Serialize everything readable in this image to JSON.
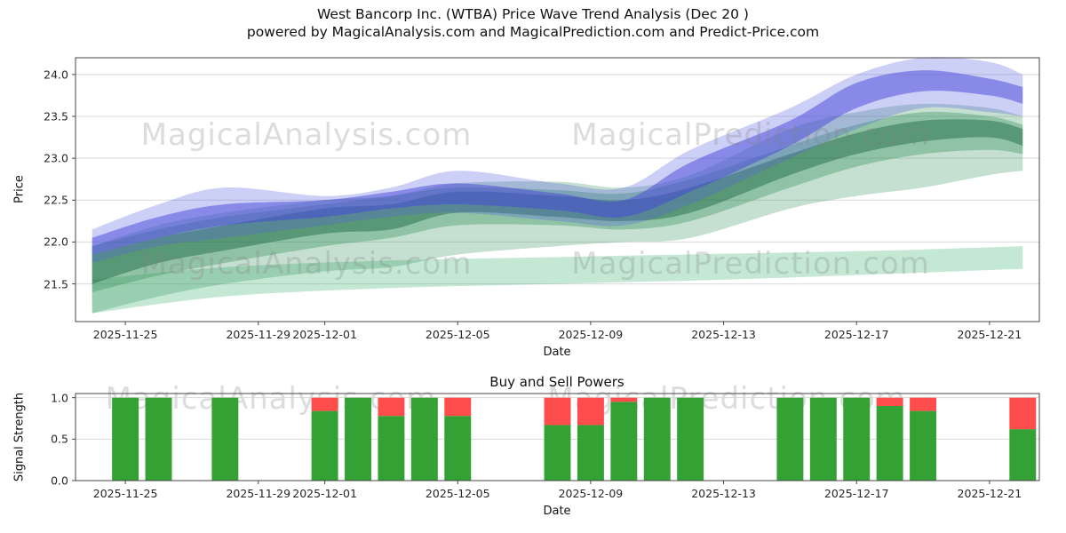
{
  "title": "West Bancorp Inc. (WTBA) Price Wave Trend Analysis (Dec 20 )",
  "subtitle": "powered by MagicalAnalysis.com and MagicalPrediction.com and Predict-Price.com",
  "watermarks": [
    "MagicalAnalysis.com",
    "MagicalPrediction.com"
  ],
  "colors": {
    "text": "#111111",
    "grid": "#d9d9d9",
    "axis": "#444444",
    "watermark": "rgba(128,128,128,0.28)",
    "bar_buy": "#33a133",
    "bar_sell": "#ff4d4d"
  },
  "chart_data": [
    {
      "type": "area",
      "title": "",
      "ylabel": "Price",
      "xlabel": "Date",
      "ylim": [
        21.05,
        24.2
      ],
      "y_ticks": [
        "21.5",
        "22.0",
        "22.5",
        "23.0",
        "23.5",
        "24.0"
      ],
      "day_range": [
        0.5,
        29.5
      ],
      "x_ticks": [
        {
          "day": 2,
          "label": "2025-11-25"
        },
        {
          "day": 6,
          "label": "2025-11-29"
        },
        {
          "day": 8,
          "label": "2025-12-01"
        },
        {
          "day": 12,
          "label": "2025-12-05"
        },
        {
          "day": 16,
          "label": "2025-12-09"
        },
        {
          "day": 20,
          "label": "2025-12-13"
        },
        {
          "day": 24,
          "label": "2025-12-17"
        },
        {
          "day": 28,
          "label": "2025-12-21"
        }
      ],
      "bands": [
        {
          "name": "support-channel-green",
          "color": "#3cb371",
          "opacity": 0.3,
          "days": [
            1,
            5,
            10,
            15,
            20,
            25,
            29
          ],
          "lower": [
            21.15,
            21.35,
            21.45,
            21.5,
            21.55,
            21.62,
            21.68
          ],
          "upper": [
            21.55,
            21.7,
            21.78,
            21.82,
            21.86,
            21.9,
            21.95
          ]
        },
        {
          "name": "outer-green-wave",
          "color": "#2e8b57",
          "opacity": 0.28,
          "days": [
            1,
            3,
            5,
            8,
            10,
            12,
            15,
            17,
            19,
            22,
            24,
            26,
            28,
            29
          ],
          "lower": [
            21.15,
            21.35,
            21.5,
            21.65,
            21.7,
            21.85,
            21.95,
            22.0,
            22.05,
            22.4,
            22.55,
            22.65,
            22.8,
            22.85
          ],
          "upper": [
            21.95,
            22.2,
            22.35,
            22.5,
            22.55,
            22.7,
            22.72,
            22.65,
            22.8,
            23.35,
            23.55,
            23.65,
            23.6,
            23.5
          ]
        },
        {
          "name": "mid-green-wave",
          "color": "#2e8b57",
          "opacity": 0.35,
          "days": [
            1,
            3,
            5,
            8,
            10,
            12,
            15,
            17,
            19,
            22,
            24,
            26,
            28,
            29
          ],
          "lower": [
            21.4,
            21.6,
            21.75,
            21.95,
            22.05,
            22.2,
            22.2,
            22.15,
            22.25,
            22.65,
            22.9,
            23.05,
            23.1,
            23.05
          ],
          "upper": [
            21.95,
            22.15,
            22.3,
            22.45,
            22.55,
            22.65,
            22.62,
            22.58,
            22.75,
            23.15,
            23.4,
            23.55,
            23.5,
            23.4
          ]
        },
        {
          "name": "core-green-wave",
          "color": "#1f6e48",
          "opacity": 0.5,
          "days": [
            1,
            3,
            5,
            8,
            10,
            12,
            15,
            17,
            19,
            22,
            24,
            26,
            28,
            29
          ],
          "lower": [
            21.5,
            21.75,
            21.9,
            22.1,
            22.15,
            22.35,
            22.3,
            22.25,
            22.35,
            22.8,
            23.05,
            23.2,
            23.25,
            23.15
          ],
          "upper": [
            21.85,
            22.05,
            22.2,
            22.4,
            22.45,
            22.6,
            22.55,
            22.5,
            22.65,
            23.05,
            23.3,
            23.45,
            23.45,
            23.35
          ]
        },
        {
          "name": "outer-blue-wave",
          "color": "#5560e0",
          "opacity": 0.3,
          "days": [
            1,
            3,
            5,
            8,
            10,
            12,
            15,
            17,
            19,
            22,
            24,
            26,
            28,
            29
          ],
          "lower": [
            21.75,
            21.95,
            22.05,
            22.2,
            22.3,
            22.35,
            22.25,
            22.2,
            22.45,
            23.0,
            23.35,
            23.6,
            23.55,
            23.5
          ],
          "upper": [
            22.15,
            22.45,
            22.65,
            22.55,
            22.65,
            22.85,
            22.7,
            22.65,
            23.1,
            23.6,
            24.0,
            24.2,
            24.15,
            24.0
          ]
        },
        {
          "name": "core-blue-wave",
          "color": "#4646d8",
          "opacity": 0.5,
          "days": [
            1,
            3,
            5,
            8,
            10,
            12,
            15,
            17,
            19,
            22,
            24,
            26,
            28,
            29
          ],
          "lower": [
            21.85,
            22.05,
            22.2,
            22.3,
            22.4,
            22.45,
            22.38,
            22.3,
            22.6,
            23.15,
            23.6,
            23.8,
            23.75,
            23.65
          ],
          "upper": [
            22.05,
            22.3,
            22.45,
            22.5,
            22.6,
            22.7,
            22.58,
            22.5,
            22.95,
            23.45,
            23.9,
            24.05,
            23.95,
            23.85
          ]
        }
      ]
    },
    {
      "type": "bar",
      "title": "Buy and Sell Powers",
      "ylabel": "Signal Strength",
      "xlabel": "Date",
      "ylim": [
        0,
        1.05
      ],
      "y_ticks": [
        "0.0",
        "0.5",
        "1.0"
      ],
      "day_range": [
        0.5,
        29.5
      ],
      "bar_width_days": 0.8,
      "x_ticks": [
        {
          "day": 2,
          "label": "2025-11-25"
        },
        {
          "day": 6,
          "label": "2025-11-29"
        },
        {
          "day": 8,
          "label": "2025-12-01"
        },
        {
          "day": 12,
          "label": "2025-12-05"
        },
        {
          "day": 16,
          "label": "2025-12-09"
        },
        {
          "day": 20,
          "label": "2025-12-13"
        },
        {
          "day": 24,
          "label": "2025-12-17"
        },
        {
          "day": 28,
          "label": "2025-12-21"
        }
      ],
      "series": [
        {
          "name": "Buy"
        },
        {
          "name": "Sell"
        }
      ],
      "bars": [
        {
          "date": "2025-11-25",
          "day": 2,
          "buy": 1.0,
          "sell": 0.0
        },
        {
          "date": "2025-11-26",
          "day": 3,
          "buy": 1.0,
          "sell": 0.0
        },
        {
          "date": "2025-11-28",
          "day": 5,
          "buy": 1.0,
          "sell": 0.0
        },
        {
          "date": "2025-12-01",
          "day": 8,
          "buy": 0.84,
          "sell": 0.16
        },
        {
          "date": "2025-12-02",
          "day": 9,
          "buy": 1.0,
          "sell": 0.0
        },
        {
          "date": "2025-12-03",
          "day": 10,
          "buy": 0.78,
          "sell": 0.22
        },
        {
          "date": "2025-12-04",
          "day": 11,
          "buy": 1.0,
          "sell": 0.0
        },
        {
          "date": "2025-12-05",
          "day": 12,
          "buy": 0.78,
          "sell": 0.22
        },
        {
          "date": "2025-12-08",
          "day": 15,
          "buy": 0.67,
          "sell": 0.33
        },
        {
          "date": "2025-12-09",
          "day": 16,
          "buy": 0.67,
          "sell": 0.33
        },
        {
          "date": "2025-12-10",
          "day": 17,
          "buy": 0.95,
          "sell": 0.05
        },
        {
          "date": "2025-12-11",
          "day": 18,
          "buy": 1.0,
          "sell": 0.0
        },
        {
          "date": "2025-12-12",
          "day": 19,
          "buy": 1.0,
          "sell": 0.0
        },
        {
          "date": "2025-12-15",
          "day": 22,
          "buy": 1.0,
          "sell": 0.0
        },
        {
          "date": "2025-12-16",
          "day": 23,
          "buy": 1.0,
          "sell": 0.0
        },
        {
          "date": "2025-12-17",
          "day": 24,
          "buy": 1.0,
          "sell": 0.0
        },
        {
          "date": "2025-12-18",
          "day": 25,
          "buy": 0.9,
          "sell": 0.1
        },
        {
          "date": "2025-12-19",
          "day": 26,
          "buy": 0.84,
          "sell": 0.16
        },
        {
          "date": "2025-12-22",
          "day": 29,
          "buy": 0.62,
          "sell": 0.38
        }
      ]
    }
  ]
}
